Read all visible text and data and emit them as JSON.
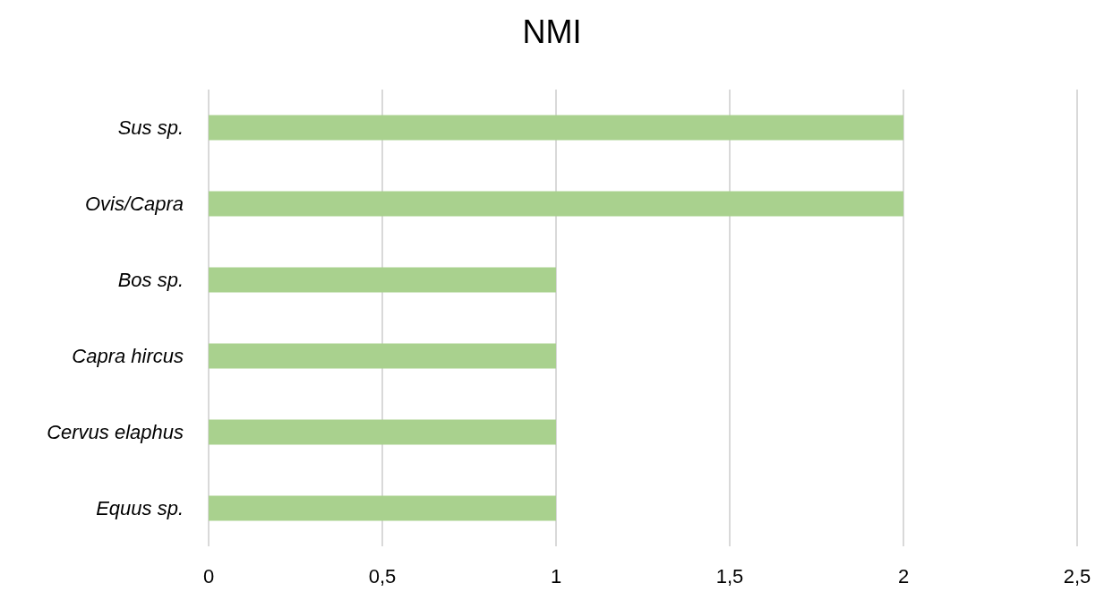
{
  "chart_data": {
    "type": "bar",
    "title": "NMI",
    "orientation": "horizontal",
    "categories": [
      "Sus sp.",
      "Ovis/Capra",
      "Bos sp.",
      "Capra hircus",
      "Cervus elaphus",
      "Equus sp."
    ],
    "values": [
      2,
      2,
      1,
      1,
      1,
      1
    ],
    "color": "#a9d18e",
    "xlim": [
      0,
      2.5
    ],
    "xticks": [
      0,
      {
        "value": 0.5,
        "label": "0,5"
      },
      1,
      {
        "value": 1.5,
        "label": "1,5"
      },
      2,
      {
        "value": 2.5,
        "label": "2,5"
      }
    ],
    "grid": "x"
  }
}
